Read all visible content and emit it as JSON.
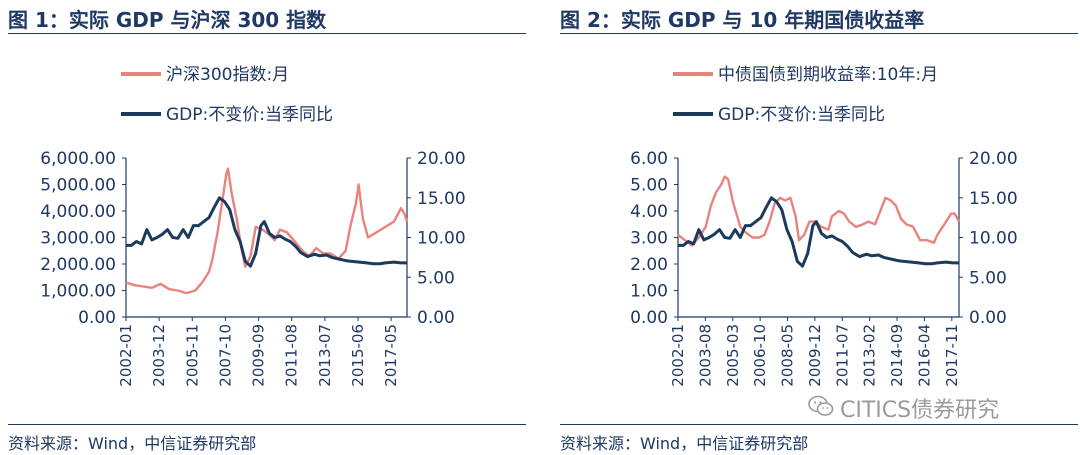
{
  "left": {
    "title": "图 1：实际 GDP 与沪深 300 指数",
    "source": "资料来源：Wind，中信证券研究部"
  },
  "right": {
    "title": "图 2：实际 GDP 与 10 年期国债收益率",
    "source": "资料来源：Wind，中信证券研究部"
  },
  "watermark": {
    "text": "CITICS债券研究",
    "icon": "wechat-icon"
  },
  "colors": {
    "pink": "#e8837e",
    "navy": "#1b3a5c"
  },
  "chart_data": [
    {
      "type": "line",
      "x_ticks": [
        "2002-01",
        "2003-12",
        "2005-11",
        "2007-10",
        "2009-09",
        "2011-08",
        "2013-07",
        "2015-06",
        "2017-05"
      ],
      "x_range": [
        2002.0,
        2018.25
      ],
      "left_axis": {
        "ticks": [
          "6,000.00",
          "5,000.00",
          "4,000.00",
          "3,000.00",
          "2,000.00",
          "1,000.00",
          "0.00"
        ],
        "ylim": [
          0,
          6000
        ]
      },
      "right_axis": {
        "ticks": [
          "20.00",
          "15.00",
          "10.00",
          "5.00",
          "0.00"
        ],
        "ylim": [
          0,
          20
        ]
      },
      "grid": false,
      "legend_position": "top-center",
      "series": [
        {
          "name": "沪深300指数:月",
          "axis": "left",
          "color": "#e8837e",
          "points": [
            [
              2002.0,
              1300
            ],
            [
              2002.5,
              1200
            ],
            [
              2003.0,
              1150
            ],
            [
              2003.5,
              1100
            ],
            [
              2004.0,
              1250
            ],
            [
              2004.5,
              1050
            ],
            [
              2005.0,
              1000
            ],
            [
              2005.5,
              900
            ],
            [
              2006.0,
              1000
            ],
            [
              2006.4,
              1300
            ],
            [
              2006.8,
              1700
            ],
            [
              2007.0,
              2200
            ],
            [
              2007.3,
              3200
            ],
            [
              2007.6,
              4500
            ],
            [
              2007.8,
              5400
            ],
            [
              2007.9,
              5600
            ],
            [
              2008.1,
              4700
            ],
            [
              2008.4,
              3700
            ],
            [
              2008.7,
              2500
            ],
            [
              2008.9,
              1900
            ],
            [
              2009.2,
              2300
            ],
            [
              2009.5,
              3400
            ],
            [
              2009.9,
              3300
            ],
            [
              2010.3,
              3100
            ],
            [
              2010.6,
              2900
            ],
            [
              2010.9,
              3300
            ],
            [
              2011.3,
              3200
            ],
            [
              2011.7,
              2900
            ],
            [
              2012.2,
              2500
            ],
            [
              2012.6,
              2300
            ],
            [
              2013.0,
              2600
            ],
            [
              2013.4,
              2400
            ],
            [
              2013.8,
              2400
            ],
            [
              2014.3,
              2200
            ],
            [
              2014.7,
              2500
            ],
            [
              2015.0,
              3500
            ],
            [
              2015.3,
              4300
            ],
            [
              2015.45,
              5000
            ],
            [
              2015.7,
              3700
            ],
            [
              2016.0,
              3000
            ],
            [
              2016.5,
              3200
            ],
            [
              2017.0,
              3400
            ],
            [
              2017.5,
              3600
            ],
            [
              2017.9,
              4100
            ],
            [
              2018.1,
              3900
            ],
            [
              2018.25,
              3600
            ]
          ]
        },
        {
          "name": "GDP:不变价:当季同比",
          "axis": "right",
          "color": "#1b3a5c",
          "points": [
            [
              2002.0,
              9.0
            ],
            [
              2002.3,
              9.0
            ],
            [
              2002.6,
              9.5
            ],
            [
              2002.9,
              9.2
            ],
            [
              2003.2,
              11.0
            ],
            [
              2003.5,
              9.7
            ],
            [
              2003.8,
              10.0
            ],
            [
              2004.1,
              10.4
            ],
            [
              2004.4,
              11.0
            ],
            [
              2004.7,
              10.0
            ],
            [
              2005.0,
              9.9
            ],
            [
              2005.3,
              11.0
            ],
            [
              2005.6,
              10.0
            ],
            [
              2005.9,
              11.5
            ],
            [
              2006.2,
              11.5
            ],
            [
              2006.5,
              12.0
            ],
            [
              2006.8,
              12.5
            ],
            [
              2007.1,
              13.8
            ],
            [
              2007.4,
              15.0
            ],
            [
              2007.7,
              14.5
            ],
            [
              2008.0,
              13.5
            ],
            [
              2008.3,
              11.0
            ],
            [
              2008.6,
              9.5
            ],
            [
              2008.9,
              7.0
            ],
            [
              2009.2,
              6.4
            ],
            [
              2009.5,
              8.0
            ],
            [
              2009.8,
              11.5
            ],
            [
              2010.0,
              12.0
            ],
            [
              2010.3,
              10.5
            ],
            [
              2010.6,
              10.0
            ],
            [
              2010.9,
              10.2
            ],
            [
              2011.2,
              9.8
            ],
            [
              2011.5,
              9.5
            ],
            [
              2011.8,
              8.9
            ],
            [
              2012.1,
              8.1
            ],
            [
              2012.5,
              7.6
            ],
            [
              2012.9,
              7.9
            ],
            [
              2013.2,
              7.7
            ],
            [
              2013.6,
              7.8
            ],
            [
              2013.9,
              7.5
            ],
            [
              2014.3,
              7.3
            ],
            [
              2014.7,
              7.1
            ],
            [
              2015.0,
              7.0
            ],
            [
              2015.5,
              6.9
            ],
            [
              2015.9,
              6.8
            ],
            [
              2016.3,
              6.7
            ],
            [
              2016.7,
              6.7
            ],
            [
              2017.0,
              6.8
            ],
            [
              2017.5,
              6.9
            ],
            [
              2017.9,
              6.8
            ],
            [
              2018.25,
              6.8
            ]
          ]
        }
      ]
    },
    {
      "type": "line",
      "x_ticks": [
        "2002-01",
        "2003-08",
        "2005-03",
        "2006-10",
        "2008-05",
        "2009-12",
        "2011-07",
        "2013-02",
        "2014-09",
        "2016-04",
        "2017-11"
      ],
      "x_range": [
        2002.0,
        2018.25
      ],
      "left_axis": {
        "ticks": [
          "6.00",
          "5.00",
          "4.00",
          "3.00",
          "2.00",
          "1.00",
          "0.00"
        ],
        "ylim": [
          0,
          6
        ]
      },
      "right_axis": {
        "ticks": [
          "20.00",
          "15.00",
          "10.00",
          "5.00",
          "0.00"
        ],
        "ylim": [
          0,
          20
        ]
      },
      "grid": false,
      "legend_position": "top-center",
      "series": [
        {
          "name": "中债国债到期收益率:10年:月",
          "axis": "left",
          "color": "#e8837e",
          "points": [
            [
              2002.0,
              3.1
            ],
            [
              2002.4,
              2.9
            ],
            [
              2002.8,
              2.7
            ],
            [
              2003.2,
              3.0
            ],
            [
              2003.6,
              3.4
            ],
            [
              2003.9,
              4.2
            ],
            [
              2004.2,
              4.7
            ],
            [
              2004.5,
              5.0
            ],
            [
              2004.7,
              5.3
            ],
            [
              2004.9,
              5.2
            ],
            [
              2005.2,
              4.3
            ],
            [
              2005.6,
              3.4
            ],
            [
              2005.9,
              3.2
            ],
            [
              2006.3,
              3.0
            ],
            [
              2006.7,
              3.0
            ],
            [
              2007.0,
              3.1
            ],
            [
              2007.3,
              3.6
            ],
            [
              2007.6,
              4.3
            ],
            [
              2007.9,
              4.5
            ],
            [
              2008.2,
              4.4
            ],
            [
              2008.5,
              4.5
            ],
            [
              2008.8,
              3.8
            ],
            [
              2009.0,
              2.9
            ],
            [
              2009.3,
              3.1
            ],
            [
              2009.6,
              3.6
            ],
            [
              2009.9,
              3.6
            ],
            [
              2010.3,
              3.4
            ],
            [
              2010.7,
              3.3
            ],
            [
              2010.9,
              3.8
            ],
            [
              2011.3,
              4.0
            ],
            [
              2011.6,
              3.9
            ],
            [
              2011.9,
              3.6
            ],
            [
              2012.3,
              3.4
            ],
            [
              2012.7,
              3.5
            ],
            [
              2013.0,
              3.6
            ],
            [
              2013.4,
              3.5
            ],
            [
              2013.7,
              4.0
            ],
            [
              2014.0,
              4.5
            ],
            [
              2014.3,
              4.4
            ],
            [
              2014.6,
              4.2
            ],
            [
              2014.9,
              3.7
            ],
            [
              2015.2,
              3.5
            ],
            [
              2015.6,
              3.4
            ],
            [
              2016.0,
              2.9
            ],
            [
              2016.4,
              2.9
            ],
            [
              2016.8,
              2.8
            ],
            [
              2017.0,
              3.1
            ],
            [
              2017.4,
              3.5
            ],
            [
              2017.8,
              3.9
            ],
            [
              2018.0,
              3.9
            ],
            [
              2018.25,
              3.6
            ]
          ]
        },
        {
          "name": "GDP:不变价:当季同比",
          "axis": "right",
          "color": "#1b3a5c",
          "points": [
            [
              2002.0,
              9.0
            ],
            [
              2002.3,
              9.0
            ],
            [
              2002.6,
              9.5
            ],
            [
              2002.9,
              9.2
            ],
            [
              2003.2,
              11.0
            ],
            [
              2003.5,
              9.7
            ],
            [
              2003.8,
              10.0
            ],
            [
              2004.1,
              10.4
            ],
            [
              2004.4,
              11.0
            ],
            [
              2004.7,
              10.0
            ],
            [
              2005.0,
              9.9
            ],
            [
              2005.3,
              11.0
            ],
            [
              2005.6,
              10.0
            ],
            [
              2005.9,
              11.5
            ],
            [
              2006.2,
              11.5
            ],
            [
              2006.5,
              12.0
            ],
            [
              2006.8,
              12.5
            ],
            [
              2007.1,
              13.8
            ],
            [
              2007.4,
              15.0
            ],
            [
              2007.7,
              14.5
            ],
            [
              2008.0,
              13.5
            ],
            [
              2008.3,
              11.0
            ],
            [
              2008.6,
              9.5
            ],
            [
              2008.9,
              7.0
            ],
            [
              2009.2,
              6.4
            ],
            [
              2009.5,
              8.0
            ],
            [
              2009.8,
              11.5
            ],
            [
              2010.0,
              12.0
            ],
            [
              2010.3,
              10.5
            ],
            [
              2010.6,
              10.0
            ],
            [
              2010.9,
              10.2
            ],
            [
              2011.2,
              9.8
            ],
            [
              2011.5,
              9.5
            ],
            [
              2011.8,
              8.9
            ],
            [
              2012.1,
              8.1
            ],
            [
              2012.5,
              7.6
            ],
            [
              2012.9,
              7.9
            ],
            [
              2013.2,
              7.7
            ],
            [
              2013.6,
              7.8
            ],
            [
              2013.9,
              7.5
            ],
            [
              2014.3,
              7.3
            ],
            [
              2014.7,
              7.1
            ],
            [
              2015.0,
              7.0
            ],
            [
              2015.5,
              6.9
            ],
            [
              2015.9,
              6.8
            ],
            [
              2016.3,
              6.7
            ],
            [
              2016.7,
              6.7
            ],
            [
              2017.0,
              6.8
            ],
            [
              2017.5,
              6.9
            ],
            [
              2017.9,
              6.8
            ],
            [
              2018.25,
              6.8
            ]
          ]
        }
      ]
    }
  ]
}
